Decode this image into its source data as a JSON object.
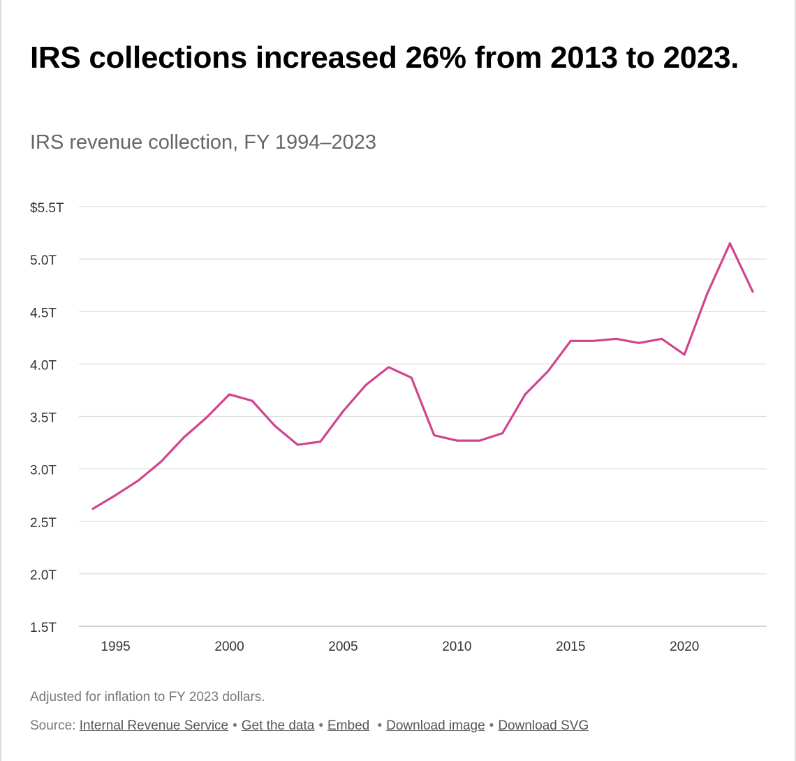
{
  "header": {
    "title": "IRS collections increased 26% from 2013 to 2023.",
    "subtitle": "IRS revenue collection, FY 1994–2023"
  },
  "chart_data": {
    "type": "line",
    "title": "IRS collections increased 26% from 2013 to 2023.",
    "subtitle": "IRS revenue collection, FY 1994–2023",
    "xlabel": "",
    "ylabel": "",
    "unit": "trillions of FY 2023 dollars",
    "xlim": [
      1994,
      2023
    ],
    "ylim": [
      1.5,
      5.5
    ],
    "grid": true,
    "x_ticks": [
      1995,
      2000,
      2005,
      2010,
      2015,
      2020
    ],
    "x_tick_labels": [
      "1995",
      "2000",
      "2005",
      "2010",
      "2015",
      "2020"
    ],
    "y_ticks": [
      1.5,
      2.0,
      2.5,
      3.0,
      3.5,
      4.0,
      4.5,
      5.0,
      5.5
    ],
    "y_tick_labels": [
      "1.5T",
      "2.0T",
      "2.5T",
      "3.0T",
      "3.5T",
      "4.0T",
      "4.5T",
      "5.0T",
      "$5.5T"
    ],
    "series": [
      {
        "name": "IRS revenue collection",
        "color": "#d0448f",
        "x": [
          1994,
          1995,
          1996,
          1997,
          1998,
          1999,
          2000,
          2001,
          2002,
          2003,
          2004,
          2005,
          2006,
          2007,
          2008,
          2009,
          2010,
          2011,
          2012,
          2013,
          2014,
          2015,
          2016,
          2017,
          2018,
          2019,
          2020,
          2021,
          2022,
          2023
        ],
        "values": [
          2.62,
          2.75,
          2.89,
          3.07,
          3.3,
          3.49,
          3.71,
          3.65,
          3.41,
          3.23,
          3.26,
          3.55,
          3.8,
          3.97,
          3.87,
          3.32,
          3.27,
          3.27,
          3.34,
          3.71,
          3.93,
          4.22,
          4.22,
          4.24,
          4.2,
          4.24,
          4.09,
          4.67,
          5.15,
          4.69
        ]
      }
    ]
  },
  "footer": {
    "note": "Adjusted for inflation to FY 2023 dollars.",
    "source_label": "Source:",
    "links": [
      "Internal Revenue Service",
      "Get the data",
      "Embed",
      "Download image",
      "Download SVG"
    ],
    "separator": "•"
  }
}
